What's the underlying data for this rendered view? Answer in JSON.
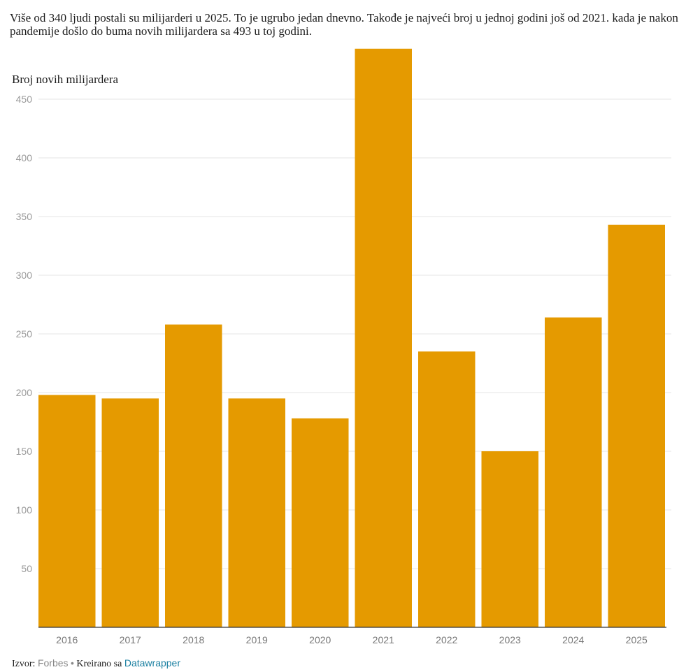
{
  "description": "Više od 340 ljudi postali su milijarderi u 2025. To je ugrubo jedan dnevno. Takođe je najveći broj u jednoj godini još od 2021. kada je nakon pandemije došlo do buma novih milijardera sa 493 u toj godini.",
  "footer": {
    "source_label": "Izvor:",
    "source_value": "Forbes",
    "separator": "•",
    "created_label": "Kreirano sa",
    "created_link": "Datawrapper"
  },
  "colors": {
    "bar": "#e59a00",
    "grid": "#e6e6e6",
    "tick_text": "#999999",
    "xtick_text": "#777777",
    "baseline": "#333333"
  },
  "chart_data": {
    "type": "bar",
    "title": "",
    "xlabel": "",
    "ylabel": "Broj novih milijardera",
    "categories": [
      "2016",
      "2017",
      "2018",
      "2019",
      "2020",
      "2021",
      "2022",
      "2023",
      "2024",
      "2025"
    ],
    "values": [
      198,
      195,
      258,
      195,
      178,
      493,
      235,
      150,
      264,
      343
    ],
    "ylim": [
      0,
      493
    ],
    "yticks": [
      50,
      100,
      150,
      200,
      250,
      300,
      350,
      400,
      450
    ],
    "grid": true,
    "legend": "none"
  }
}
